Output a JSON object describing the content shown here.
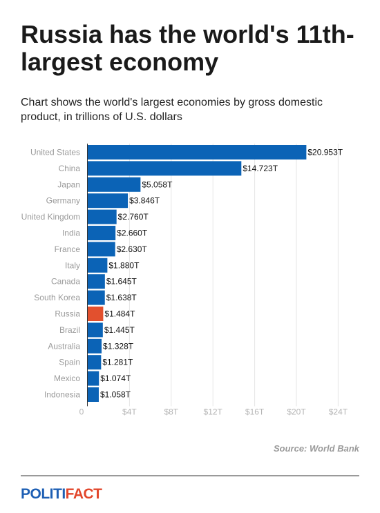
{
  "title": "Russia has the world's 11th-largest economy",
  "subtitle": "Chart shows the world's largest economies by gross domestic product, in trillions of U.S. dollars",
  "source": "Source: World Bank",
  "logo": {
    "part1": "POLITI",
    "part2": "FACT"
  },
  "colors": {
    "bar": "#0b63b6",
    "highlight": "#e2502e",
    "label": "#9a9a9a",
    "value": "#111111"
  },
  "chart_data": {
    "type": "bar",
    "orientation": "horizontal",
    "categories": [
      "United States",
      "China",
      "Japan",
      "Germany",
      "United Kingdom",
      "India",
      "France",
      "Italy",
      "Canada",
      "South Korea",
      "Russia",
      "Brazil",
      "Australia",
      "Spain",
      "Mexico",
      "Indonesia"
    ],
    "values": [
      20.953,
      14.723,
      5.058,
      3.846,
      2.76,
      2.66,
      2.63,
      1.88,
      1.645,
      1.638,
      1.484,
      1.445,
      1.328,
      1.281,
      1.074,
      1.058
    ],
    "value_labels": [
      "$20.953T",
      "$14.723T",
      "$5.058T",
      "$3.846T",
      "$2.760T",
      "$2.660T",
      "$2.630T",
      "$1.880T",
      "$1.645T",
      "$1.638T",
      "$1.484T",
      "$1.445T",
      "$1.328T",
      "$1.281T",
      "$1.074T",
      "$1.058T"
    ],
    "highlight": "Russia",
    "xlim": [
      0,
      24
    ],
    "x_ticks": [
      0,
      4,
      8,
      12,
      16,
      20,
      24
    ],
    "x_tick_labels": [
      "0",
      "$4T",
      "$8T",
      "$12T",
      "$16T",
      "$20T",
      "$24T"
    ],
    "grid": true
  }
}
